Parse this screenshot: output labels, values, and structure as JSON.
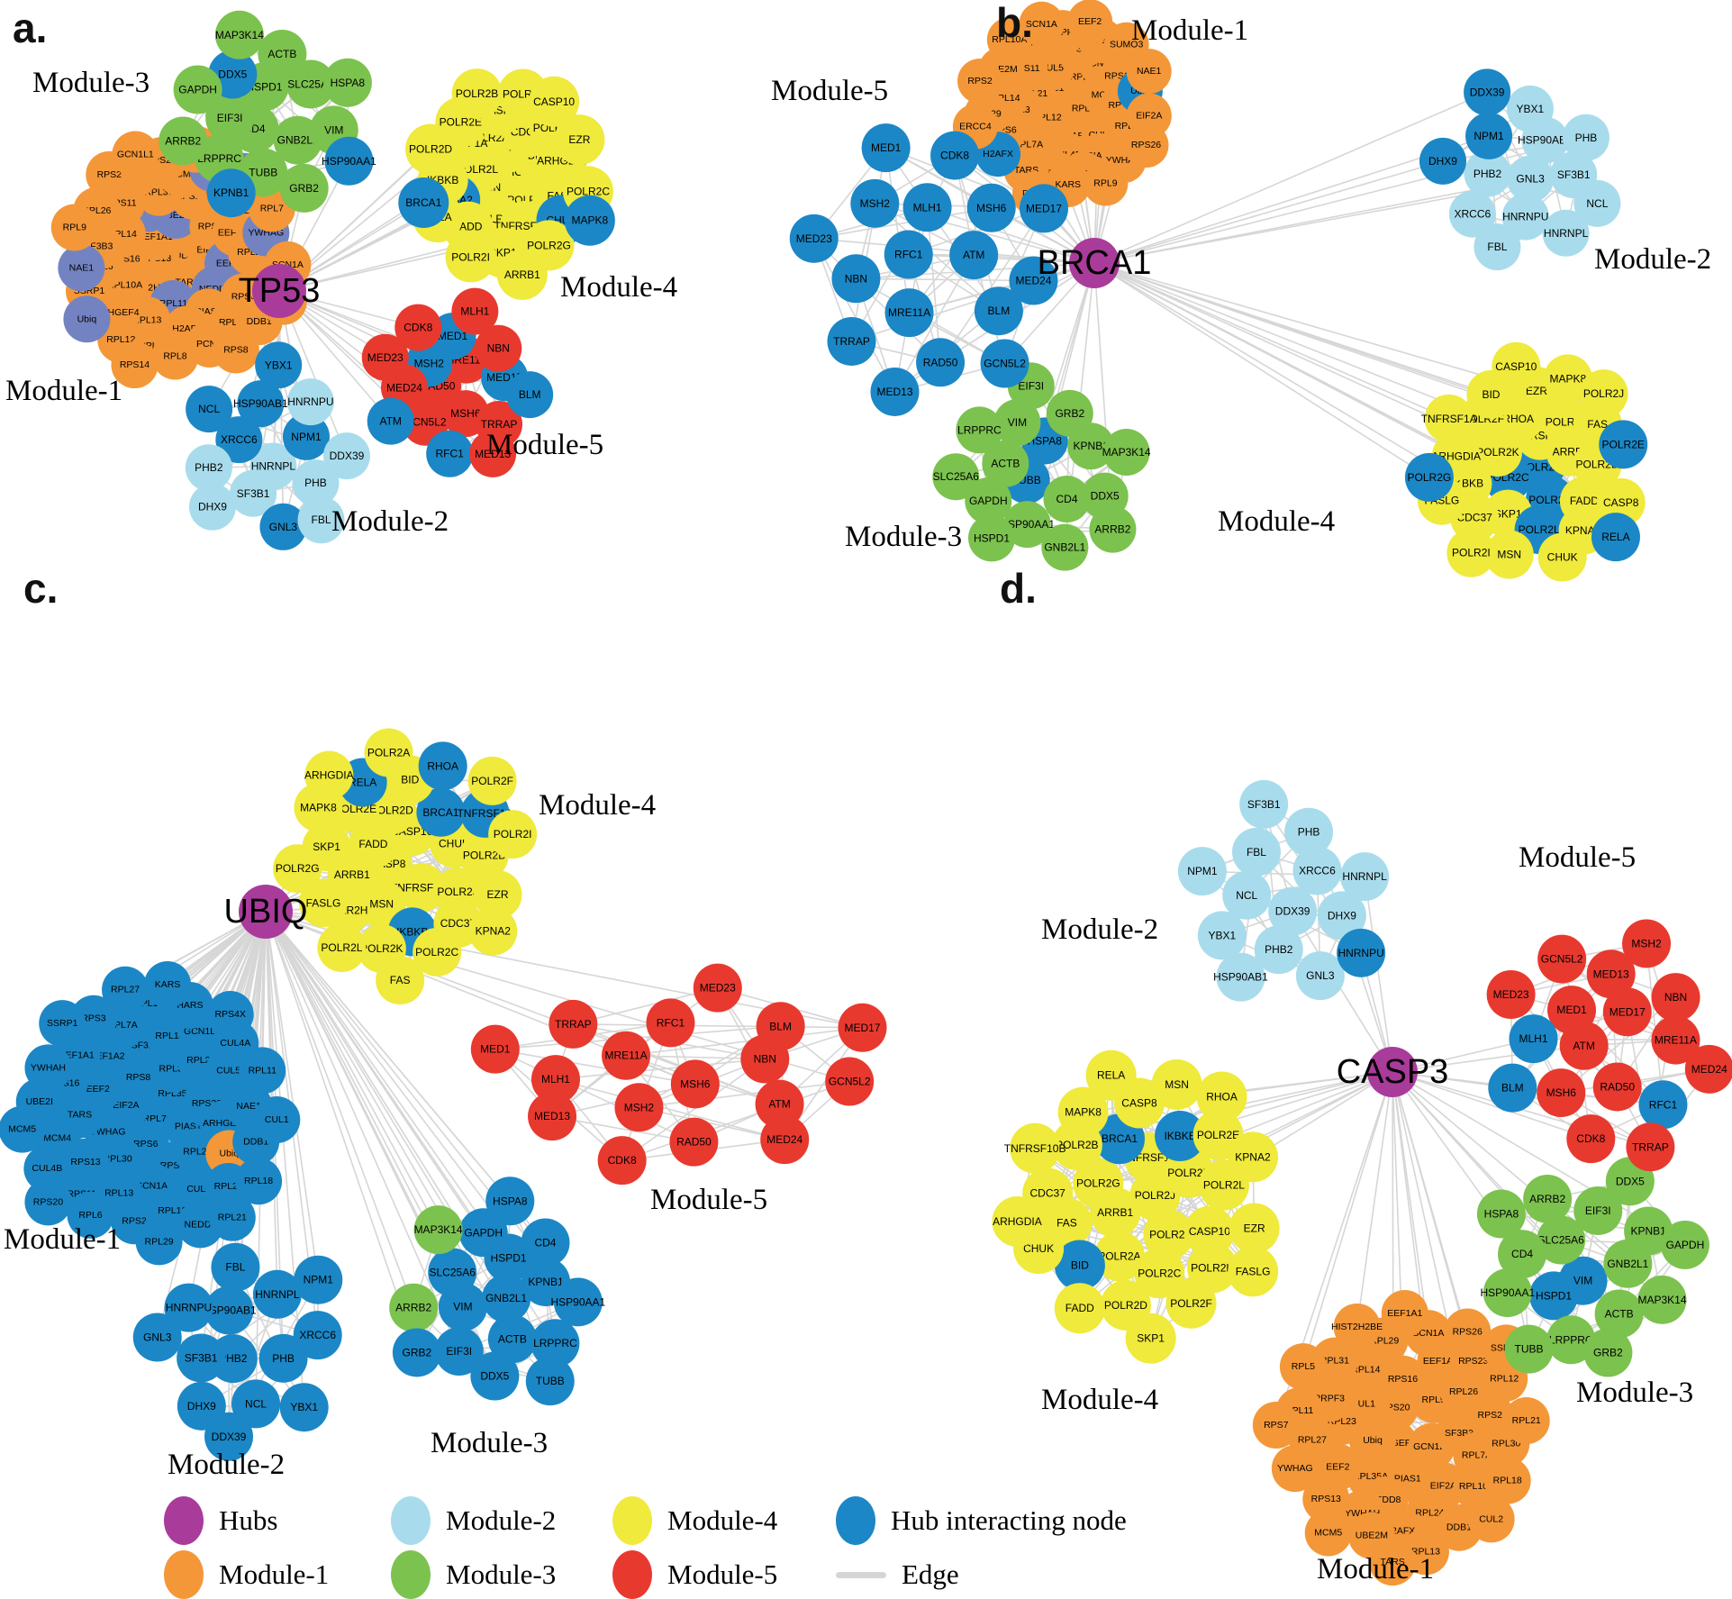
{
  "colors": {
    "hub": "#A93B9B",
    "module1": "#F49738",
    "module2": "#A8DCEC",
    "module3": "#7CC24E",
    "module4": "#EFEA3B",
    "module5": "#E8392F",
    "hub_interacting": "#1B87C6",
    "slate_interacting": "#7383C1",
    "edge": "#D6D6D6",
    "label": "#000000"
  },
  "legend": {
    "items": [
      {
        "label": "Hubs",
        "color_key": "hub",
        "shape": "circle"
      },
      {
        "label": "Module-1",
        "color_key": "module1",
        "shape": "circle"
      },
      {
        "label": "Module-2",
        "color_key": "module2",
        "shape": "circle"
      },
      {
        "label": "Module-3",
        "color_key": "module3",
        "shape": "circle"
      },
      {
        "label": "Module-4",
        "color_key": "module4",
        "shape": "circle"
      },
      {
        "label": "Module-5",
        "color_key": "module5",
        "shape": "circle"
      },
      {
        "label": "Hub interacting node",
        "color_key": "hub_interacting",
        "shape": "circle"
      },
      {
        "label": "Edge",
        "color_key": "edge",
        "shape": "line"
      }
    ]
  },
  "panels": [
    {
      "id": "a",
      "letter": "a.",
      "hub": {
        "label": "TP53"
      },
      "modules": [
        {
          "name": "Module-1",
          "color_key": "module1",
          "nodes": [
            "CUL4B",
            "RPS13",
            "UL1",
            "TARS",
            "EEF1A1",
            "EIF2A",
            "HIST2H2BE",
            "UBE2M|slate",
            "NEDD8|slate",
            "RPS16",
            "RPS20",
            "RPL11|slate",
            "RPL5|slate",
            "EEF2|slate",
            "RPL10A",
            "RPS15A",
            "PIAS1",
            "RPL14",
            "EEF1A2",
            "RPL13",
            "RPL36",
            "RPS6",
            "RPL6",
            "HARS",
            "H2AFX",
            "RPS11",
            "RPL29",
            "ARHGEF4",
            "MCM4",
            "RPL21",
            "SF3B3",
            "RPL23",
            "RPL35A",
            "RPS3",
            "KARS",
            "SSRP1",
            "RPS7|slate",
            "PCNA",
            "RPL26",
            "YWHAG|slate",
            "RPL12",
            "RPS23",
            "DDB1",
            "NAE1|slate",
            "SUMO3|slate",
            "RPL8",
            "RPS2",
            "SCN1A",
            "Ubiq|slate",
            "CUL2",
            "RPS8",
            "RPL9",
            "RPL7",
            "RPS14",
            "GCN1L1",
            "MCM5"
          ]
        },
        {
          "name": "Module-2",
          "color_key": "module2",
          "nodes": [
            "HNRNPL",
            "XRCC6|hi",
            "NPM1|hi",
            "SF3B1",
            "HSP90AB1|hi",
            "PHB",
            "PHB2",
            "HNRNPU",
            "GNL3|hi",
            "NCL|hi",
            "DDX39",
            "DHX9",
            "YBX1|hi",
            "FBL"
          ]
        },
        {
          "name": "Module-3",
          "color_key": "module3",
          "nodes": [
            "CD4",
            "HSPD1",
            "GNB2L1",
            "EIF3I",
            "SLC25A6",
            "TUBB",
            "DDX5|hi",
            "VIM",
            "LRPPRC",
            "ACTB",
            "GRB2",
            "GAPDH",
            "HSPA8",
            "KPNB1|hi",
            "MAP3K14",
            "HSP90AA1|hi",
            "ARRB2"
          ]
        },
        {
          "name": "Module-4",
          "color_key": "module4",
          "nodes": [
            "RHOA",
            "MSN",
            "FASLG",
            "POLR2H",
            "POLR2L",
            "BID",
            "POLR2F",
            "POLR2A",
            "FAS",
            "KPNA2|hi",
            "CDC37",
            "TNFRSF10B",
            "TNFRSF1A",
            "ARHGDIA",
            "FADD",
            "CASP8",
            "CHUK|hi",
            "IKBKB",
            "POLR2K",
            "SKP1",
            "POLR2E",
            "POLR2C",
            "RELA",
            "POLR2J",
            "POLR2G",
            "POLR2D",
            "EZR",
            "POLR2I",
            "POLR2B",
            "MAPK8|hi",
            "BRCA1|hi",
            "CASP10",
            "ARRB1"
          ]
        },
        {
          "name": "Module-5",
          "color_key": "module5",
          "nodes": [
            "RAD50",
            "MRE11A",
            "MSH6",
            "MSH2|hi",
            "MED17|hi",
            "GCN5L2",
            "MED1|hi",
            "TRRAP",
            "MED24",
            "NBN",
            "RFC1|hi",
            "CDK8",
            "BLM|hi",
            "ATM|hi",
            "MLH1",
            "MED13",
            "MED23"
          ]
        }
      ]
    },
    {
      "id": "b",
      "letter": "b.",
      "hub": {
        "label": "BRCA1"
      },
      "modules": [
        {
          "name": "Module-1",
          "color_key": "module1",
          "nodes": [
            "RPL23",
            "RPS13",
            "RPL35A",
            "RPL12",
            "RPL6",
            "HARS",
            "RPL21",
            "MCM5",
            "RPS23",
            "CUL5",
            "CUL4A",
            "UL3",
            "GCN1L1",
            "CUL4B",
            "RPS11",
            "RPL11",
            "RPL7A",
            "RPS14",
            "PIAS1",
            "RPL14",
            "RPS15A",
            "RPL30",
            "EMG1",
            "RPL13",
            "RPS6",
            "EEF1A1",
            "RPS8",
            "UBE2M",
            "Ubiq|hi",
            "TARS",
            "PRPF3",
            "YWHAG",
            "RPL29",
            "SUMO3",
            "KARS",
            "RPL10A",
            "EIF2A",
            "H2AFX|hi",
            "EEF2",
            "RPL9",
            "RPS2",
            "NAE1",
            "DDB1",
            "SCN1A",
            "RPS26",
            "ERCC4"
          ]
        },
        {
          "name": "Module-2",
          "color_key": "module2",
          "nodes": [
            "GNL3",
            "PHB2",
            "HSP90AB1",
            "HNRNPU",
            "NPM1|hi",
            "SF3B1",
            "XRCC6",
            "YBX1",
            "HNRNPL",
            "DHX9|hi",
            "PHB",
            "FBL",
            "DDX39|hi",
            "NCL"
          ]
        },
        {
          "name": "Module-3",
          "color_key": "module3",
          "nodes": [
            "TUBB|hi",
            "HSPA8|hi",
            "CD4",
            "ACTB",
            "KPNB1",
            "HSP90AA1",
            "VIM",
            "DDX5",
            "GAPDH",
            "GRB2",
            "GNB2L1",
            "LRPPRC",
            "MAP3K14",
            "HSPD1",
            "EIF3I",
            "ARRB2",
            "SLC25A6"
          ]
        },
        {
          "name": "Module-4",
          "color_key": "module4",
          "nodes": [
            "POLR2A|hi",
            "POLR2C|hi",
            "TNFRSF10B",
            "POLR2B|hi",
            "POLR2K",
            "ARRB1",
            "SKP1",
            "RHOA",
            "FADD",
            "IKBKB",
            "POLR2H",
            "POLR2L|hi",
            "POLR2F",
            "POLR2D",
            "CDC37",
            "EZR",
            "KPNA2",
            "ARHGDIA",
            "FAS",
            "MSN",
            "BID",
            "CASP8",
            "FASLG",
            "MAPK8",
            "CHUK",
            "TNFRSF1A",
            "POLR2E|hi",
            "POLR2I",
            "CASP10",
            "RELA|hi",
            "POLR2G|hi",
            "POLR2J"
          ]
        },
        {
          "name": "Module-5",
          "color_key": "hub_interacting",
          "nodes": [
            "RFC1",
            "ATM",
            "MRE11A",
            "MLH1",
            "BLM",
            "NBN",
            "MSH6",
            "RAD50",
            "MSH2",
            "MED24",
            "TRRAP",
            "CDK8",
            "GCN5L2",
            "MED23",
            "MED17",
            "MED13",
            "MED1"
          ]
        }
      ]
    },
    {
      "id": "c",
      "letter": "c.",
      "hub": {
        "label": "UBIQ"
      },
      "modules": [
        {
          "name": "Module-1",
          "color_key": "hub_interacting",
          "nodes": [
            "RPL7",
            "EIF2A",
            "RPL35A",
            "RPS6",
            "RPS8",
            "PIAS1",
            "YWHAG",
            "RPL31",
            "RPS7",
            "EEF2",
            "RPS23",
            "RPL30",
            "SF3B3",
            "RPL23",
            "TARS",
            "RPL26",
            "SCN1A",
            "EEF1A2",
            "ARHGEF4",
            "RPS13",
            "RPL14",
            "CUL2",
            "RPS16",
            "CUL5",
            "RPL13",
            "RPL7A",
            "Ubiq|m1",
            "MCM4",
            "GCN1L1",
            "RPL12",
            "EEF1A1",
            "NAE1",
            "RPS11",
            "RPL10A",
            "RPL24",
            "UBE2I",
            "CUL4A",
            "RPS2",
            "RPS3",
            "DDB1",
            "CUL4B",
            "HARS",
            "NEDD8",
            "YWHAH",
            "RPL11",
            "RPL6",
            "RPL27",
            "RPL18",
            "MCM5",
            "RPS4X",
            "RPL29",
            "SSRP1",
            "CUL1",
            "RPS20",
            "KARS",
            "RPL21"
          ]
        },
        {
          "name": "Module-2",
          "color_key": "hub_interacting",
          "nodes": [
            "PHB2",
            "HSP90AB1",
            "PHB",
            "SF3B1",
            "HNRNPL",
            "NCL",
            "HNRNPU",
            "XRCC6",
            "DHX9",
            "FBL",
            "YBX1",
            "GNL3",
            "NPM1",
            "DDX39"
          ]
        },
        {
          "name": "Module-3",
          "color_key": "hub_interacting",
          "nodes": [
            "GNB2L1",
            "VIM",
            "HSPD1",
            "ACTB",
            "SLC25A6",
            "KPNB1",
            "EIF3I",
            "GAPDH",
            "LRPPRC",
            "ARRB2|m3",
            "CD4",
            "DDX5",
            "MAP3K14|m3",
            "HSP90AA1",
            "GRB2",
            "HSPA8",
            "TUBB"
          ]
        },
        {
          "name": "Module-4",
          "color_key": "module4",
          "nodes": [
            "CASP8",
            "CASP10",
            "TNFRSF10B",
            "FADD",
            "CHUK",
            "MSN",
            "POLR2D",
            "POLR2J",
            "ARRB1",
            "BRCA1|hi",
            "IKBKB|hi",
            "POLR2E",
            "POLR2B",
            "POLR2H",
            "BID",
            "CDC37",
            "SKP1",
            "TNFRSF1A|hi",
            "POLR2K",
            "RELA|hi",
            "EZR",
            "FASLG",
            "RHOA|hi",
            "POLR2C",
            "MAPK8",
            "POLR2I",
            "POLR2L",
            "POLR2A",
            "KPNA2",
            "POLR2G",
            "POLR2F",
            "FAS",
            "ARHGDIA"
          ]
        },
        {
          "name": "Module-5",
          "color_key": "module5",
          "nodes": [
            "MSH6",
            "MRE11A",
            "NBN",
            "MSH2",
            "RFC1",
            "ATM",
            "MLH1",
            "BLM",
            "RAD50",
            "TRRAP",
            "GCN5L2",
            "MED13",
            "MED23",
            "MED24",
            "MED1",
            "MED17",
            "CDK8"
          ]
        }
      ]
    },
    {
      "id": "d",
      "letter": "d.",
      "hub": {
        "label": "CASP3"
      },
      "modules": [
        {
          "name": "Module-1",
          "color_key": "module1",
          "nodes": [
            "ARHGEF4",
            "RPS20",
            "GCN1L1",
            "Ubiq",
            "RPL9",
            "PIAS1",
            "UL1",
            "SF3B3",
            "RPL35A",
            "RPS16",
            "EIF2A",
            "RPL23",
            "RPL26",
            "NEDD8",
            "RPL14",
            "RPL7A",
            "EEF2",
            "EEF1A2",
            "RPL24",
            "PRPF3",
            "RPS2",
            "YWHAH",
            "RPL29",
            "RPL10A",
            "RPL27",
            "RPS23",
            "H2AFX",
            "RPL31",
            "RPL30",
            "RPS13",
            "SCN1A",
            "DDB1",
            "RPL11",
            "RPL12",
            "UBE2M",
            "HIST2H2BE",
            "RPL18",
            "YWHAG",
            "RPS26",
            "RPL13",
            "RPL5",
            "RPL21",
            "MCM5",
            "EEF1A1",
            "CUL2",
            "RPS7",
            "SSRP1",
            "TARS"
          ]
        },
        {
          "name": "Module-2",
          "color_key": "module2",
          "nodes": [
            "DDX39",
            "NCL",
            "XRCC6",
            "PHB2",
            "FBL",
            "DHX9",
            "YBX1",
            "PHB",
            "GNL3",
            "NPM1",
            "HNRNPL",
            "HSP90AB1",
            "SF3B1",
            "HNRNPU|hi"
          ]
        },
        {
          "name": "Module-3",
          "color_key": "module3",
          "nodes": [
            "VIM|hi",
            "SLC25A6",
            "GNB2L1",
            "HSPD1|hi",
            "EIF3I",
            "ACTB",
            "CD4",
            "KPNB1",
            "LRPPRC",
            "ARRB2",
            "MAP3K14",
            "HSP90AA1",
            "DDX5",
            "GRB2",
            "HSPA8",
            "GAPDH",
            "TUBB"
          ]
        },
        {
          "name": "Module-4",
          "color_key": "module4",
          "nodes": [
            "POLR2J",
            "ARRB1",
            "TNFRSF1A",
            "POLR2I",
            "POLR2G",
            "POLR2K",
            "POLR2A",
            "BRCA1|hi",
            "CASP10",
            "FAS",
            "IKBKB|hi",
            "POLR2C",
            "POLR2B",
            "POLR2L",
            "BID|hi",
            "CASP8",
            "POLR2H",
            "CDC37",
            "POLR2E",
            "POLR2D",
            "MAPK8",
            "EZR",
            "CHUK",
            "MSN",
            "POLR2F",
            "TNFRSF10B",
            "KPNA2",
            "FADD",
            "RELA",
            "FASLG",
            "ARHGDIA",
            "RHOA",
            "SKP1"
          ]
        },
        {
          "name": "Module-5",
          "color_key": "module5",
          "nodes": [
            "ATM",
            "MED17",
            "RAD50",
            "MED1",
            "MRE11A",
            "MSH6",
            "MED13",
            "RFC1|hi",
            "MLH1|hi",
            "NBN",
            "CDK8",
            "GCN5L2",
            "MED24",
            "BLM|hi",
            "MSH2",
            "TRRAP",
            "MED23"
          ]
        }
      ]
    }
  ]
}
